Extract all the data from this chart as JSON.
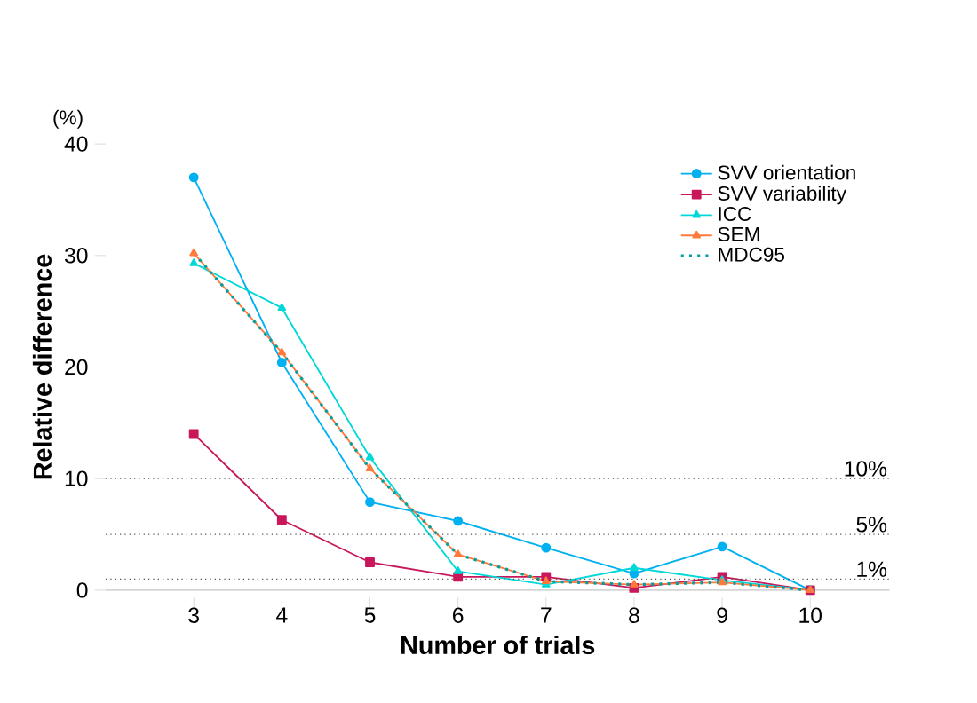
{
  "chart_data": {
    "type": "line",
    "xlabel": "Number of trials",
    "ylabel": "Relative difference",
    "categories": [
      "3",
      "4",
      "5",
      "6",
      "7",
      "8",
      "9",
      "10"
    ],
    "ylim": [
      0,
      40
    ],
    "yticks": [
      0,
      10,
      20,
      30,
      40
    ],
    "grid": false,
    "legend": "top right",
    "series": [
      {
        "name": "SVV orientation",
        "color": "#00b0f0",
        "marker": "circle",
        "line_style": "solid",
        "values": [
          37,
          20.4,
          7.9,
          6.2,
          3.8,
          1.5,
          3.9,
          0
        ]
      },
      {
        "name": "SVV variability",
        "color": "#c8175a",
        "marker": "square",
        "line_style": "solid",
        "values": [
          14,
          6.3,
          2.5,
          1.2,
          1.2,
          0.2,
          1.2,
          0
        ]
      },
      {
        "name": "ICC",
        "color": "#00d8d8",
        "marker": "triangle",
        "line_style": "solid",
        "values": [
          29.3,
          25.3,
          11.9,
          1.7,
          0.5,
          2.0,
          0.9,
          0
        ]
      },
      {
        "name": "SEM",
        "color": "#ff7a3c",
        "marker": "triangle",
        "line_style": "solid",
        "values": [
          30.2,
          21.3,
          10.9,
          3.2,
          0.8,
          0.5,
          0.7,
          0
        ]
      },
      {
        "name": "MDC95",
        "color": "#00a0a0",
        "marker": "none",
        "line_style": "dotted",
        "values": [
          30.2,
          21.3,
          10.9,
          3.2,
          0.8,
          0.5,
          0.7,
          0
        ]
      }
    ],
    "ref_lines": [
      {
        "axis": "y",
        "value": 10,
        "label": "10%",
        "color": "#505050",
        "line_style": "dotted"
      },
      {
        "axis": "y",
        "value": 5,
        "label": "5%",
        "color": "#505050",
        "line_style": "dotted"
      },
      {
        "axis": "y",
        "value": 1,
        "label": "1%",
        "color": "#505050",
        "line_style": "dotted"
      }
    ],
    "annotations": [
      "(%)"
    ]
  }
}
